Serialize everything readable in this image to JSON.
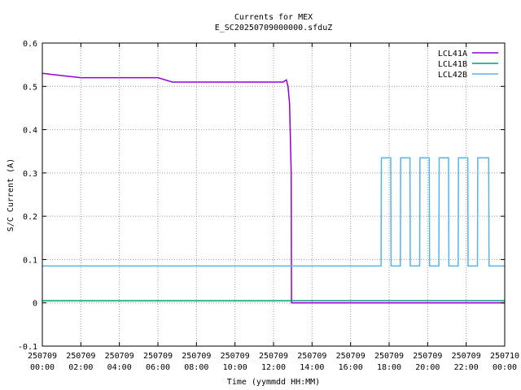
{
  "chart_data": {
    "type": "line",
    "title": "Currents for MEX",
    "subtitle": "E_SC20250709000000.sfduZ",
    "xlabel": "Time (yymmdd HH:MM)",
    "ylabel": "S/C Current (A)",
    "xlim": [
      "250709 00:00",
      "250710 00:00"
    ],
    "ylim": [
      -0.1,
      0.6
    ],
    "grid": true,
    "legend_position": "top-right",
    "x_ticks": [
      {
        "date": "250709",
        "time": "00:00"
      },
      {
        "date": "250709",
        "time": "02:00"
      },
      {
        "date": "250709",
        "time": "04:00"
      },
      {
        "date": "250709",
        "time": "06:00"
      },
      {
        "date": "250709",
        "time": "08:00"
      },
      {
        "date": "250709",
        "time": "10:00"
      },
      {
        "date": "250709",
        "time": "12:00"
      },
      {
        "date": "250709",
        "time": "14:00"
      },
      {
        "date": "250709",
        "time": "16:00"
      },
      {
        "date": "250709",
        "time": "18:00"
      },
      {
        "date": "250709",
        "time": "20:00"
      },
      {
        "date": "250709",
        "time": "22:00"
      },
      {
        "date": "250710",
        "time": "00:00"
      }
    ],
    "y_ticks": [
      "-0.1",
      "0",
      "0.1",
      "0.2",
      "0.3",
      "0.4",
      "0.5",
      "0.6"
    ],
    "series": [
      {
        "name": "LCL41A",
        "color": "#9400d3",
        "x": [
          "250709 00:00",
          "250709 01:00",
          "250709 02:00",
          "250709 04:00",
          "250709 06:00",
          "250709 06:45",
          "250709 08:00",
          "250709 10:00",
          "250709 11:00",
          "250709 12:00",
          "250709 12:30",
          "250709 12:40",
          "250709 12:45",
          "250709 12:50",
          "250709 12:55",
          "250709 12:56",
          "250709 14:00",
          "250709 16:00",
          "250709 18:00",
          "250709 20:00",
          "250709 22:00",
          "250710 00:00"
        ],
        "values": [
          0.53,
          0.525,
          0.52,
          0.52,
          0.52,
          0.51,
          0.51,
          0.51,
          0.51,
          0.51,
          0.51,
          0.515,
          0.5,
          0.46,
          0.3,
          0.0,
          0.0,
          0.0,
          0.0,
          0.0,
          0.0,
          0.0
        ]
      },
      {
        "name": "LCL41B",
        "color": "#009e73",
        "x": [
          "250709 00:00",
          "250709 06:00",
          "250709 12:00",
          "250709 18:00",
          "250710 00:00"
        ],
        "values": [
          0.005,
          0.005,
          0.005,
          0.005,
          0.005
        ]
      },
      {
        "name": "LCL42B",
        "color": "#56b4e9",
        "x": [
          "250709 00:00",
          "250709 17:35",
          "250709 17:36",
          "250709 18:05",
          "250709 18:06",
          "250709 18:35",
          "250709 18:36",
          "250709 19:05",
          "250709 19:06",
          "250709 19:35",
          "250709 19:36",
          "250709 20:05",
          "250709 20:06",
          "250709 20:35",
          "250709 20:36",
          "250709 21:05",
          "250709 21:06",
          "250709 21:35",
          "250709 21:36",
          "250709 22:05",
          "250709 22:06",
          "250709 22:35",
          "250709 22:36",
          "250709 23:10",
          "250709 23:11",
          "250710 00:00"
        ],
        "values": [
          0.085,
          0.085,
          0.335,
          0.335,
          0.085,
          0.085,
          0.335,
          0.335,
          0.085,
          0.085,
          0.335,
          0.335,
          0.085,
          0.085,
          0.335,
          0.335,
          0.085,
          0.085,
          0.335,
          0.335,
          0.085,
          0.085,
          0.335,
          0.335,
          0.085,
          0.085
        ]
      }
    ]
  }
}
